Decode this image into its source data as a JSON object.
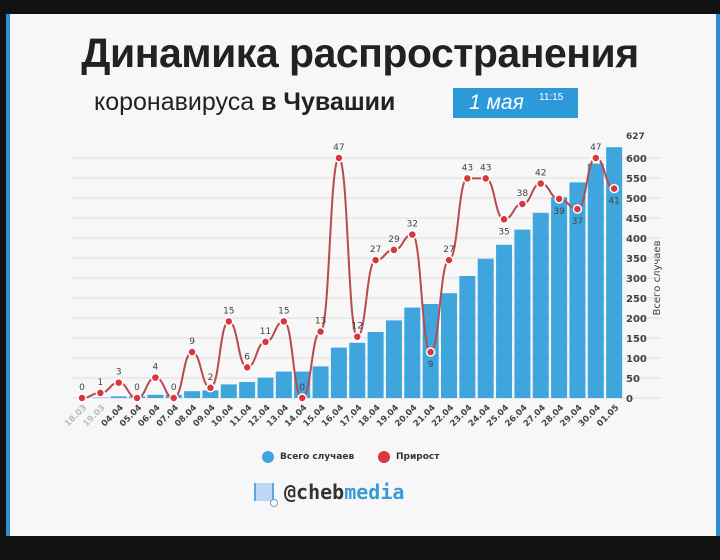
{
  "header": {
    "title": "Динамика распространения",
    "subtitle_a": "коронавируса",
    "subtitle_b": "в Чувашии",
    "date": "1 мая",
    "time": "11:15"
  },
  "legend": {
    "total": "Всего случаев",
    "growth": "Прирост"
  },
  "logo": {
    "prefix": "@cheb",
    "suffix": "media"
  },
  "colors": {
    "bar": "#3fa6dd",
    "line": "#b84a4e",
    "dot": "#d9363e"
  },
  "chart_data": {
    "type": "bar+line",
    "categories": [
      "18.03",
      "19.03",
      "04.04",
      "05.04",
      "06.04",
      "07.04",
      "08.04",
      "09.04",
      "10.04",
      "11.04",
      "12.04",
      "13.04",
      "14.04",
      "15.04",
      "16.04",
      "17.04",
      "18.04",
      "19.04",
      "20.04",
      "21.04",
      "22.04",
      "23.04",
      "24.04",
      "25.04",
      "26.04",
      "27.04",
      "28.04",
      "29.04",
      "30.04",
      "01.05"
    ],
    "series": [
      {
        "name": "Всего случаев",
        "type": "bar",
        "values": [
          0,
          1,
          4,
          4,
          8,
          8,
          17,
          19,
          34,
          40,
          51,
          66,
          66,
          79,
          126,
          138,
          165,
          194,
          226,
          235,
          262,
          305,
          348,
          383,
          421,
          463,
          502,
          539,
          586,
          627
        ]
      },
      {
        "name": "Прирост",
        "type": "line",
        "values": [
          0,
          1,
          3,
          0,
          4,
          0,
          9,
          2,
          15,
          6,
          11,
          15,
          0,
          13,
          47,
          12,
          27,
          29,
          32,
          9,
          27,
          43,
          43,
          35,
          38,
          42,
          39,
          37,
          47,
          41
        ]
      }
    ],
    "ylabel": "Всего случаев",
    "ylim": [
      0,
      627
    ],
    "yticks": [
      0,
      50,
      100,
      150,
      200,
      250,
      300,
      350,
      400,
      450,
      500,
      550,
      600
    ],
    "ymax_label": "627",
    "grid": true,
    "legend": "bottom"
  }
}
